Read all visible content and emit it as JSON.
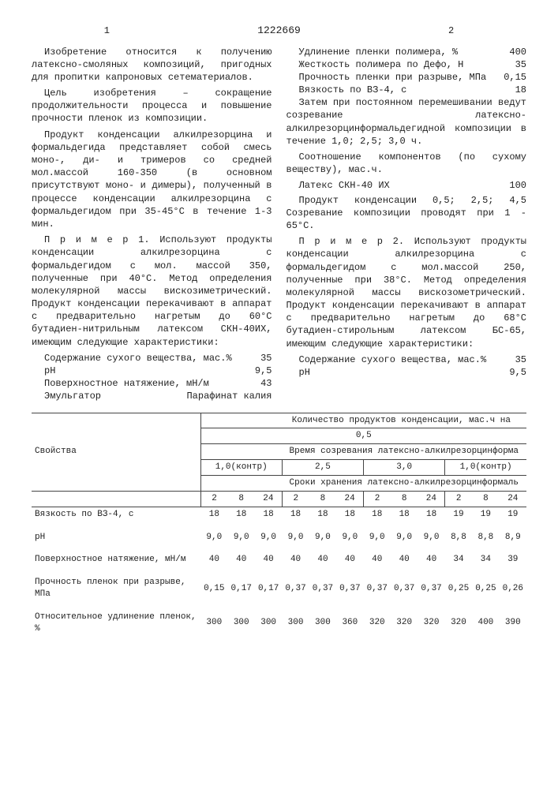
{
  "doc_number": "1222669",
  "left_col_page": "1",
  "right_col_page": "2",
  "left_paragraphs": [
    "Изобретение относится к получению латексно-смоляных композиций, пригодных для пропитки капроновых сетематериалов.",
    "Цель изобретения – сокращение продолжительности процесса и повышение прочности пленок из композиции.",
    "Продукт конденсации алкилрезорцина и формальдегида представляет собой смесь моно-, ди- и тримеров со средней мол.массой 160-350 (в основном присутствуют моно- и димеры), полученный в процессе конденсации алкилрезорцина с формальдегидом при 35-45°С в течение 1-3 мин.",
    "П р и м е р  1. Используют продукты конденсации алкилрезорцина с формальдегидом с мол. массой 350, полученные при 40°С. Метод определения молекулярной массы вискозиметрический. Продукт конденсации перекачивают в аппарат с предварительно нагретым до 60°С бутадиен-нитрильным латексом СКН-40ИХ, имеющим следующие характеристики:"
  ],
  "left_kv": [
    {
      "label": "Содержание сухого вещества, мас.%",
      "value": "35"
    },
    {
      "label": "pH",
      "value": "9,5"
    },
    {
      "label": "Поверхностное натяжение, мН/м",
      "value": "43"
    },
    {
      "label": "Эмульгатор",
      "value": "Парафинат калия"
    }
  ],
  "right_kv_top": [
    {
      "label": "Удлинение пленки полимера, %",
      "value": "400"
    },
    {
      "label": "Жесткость полимера по Дефо, Н",
      "value": "35"
    },
    {
      "label": "Прочность пленки при разрыве, МПа",
      "value": "0,15"
    },
    {
      "label": "Вязкость по ВЗ-4, с",
      "value": "18"
    }
  ],
  "right_paragraphs_1": [
    "Затем при постоянном перемешивании ведут созревание латексно-алкилрезорцинформальдегидной композиции в течение 1,0; 2,5; 3,0 ч.",
    "Соотношение компонентов (по сухому веществу), мас.ч."
  ],
  "right_kv_mid": [
    {
      "label": "Латекс СКН-40 ИХ",
      "value": "100"
    }
  ],
  "right_paragraphs_2": [
    "Продукт конденсации 0,5; 2,5; 4,5 Созревание композиции проводят при 1 - 65°С.",
    "П р и м е р  2. Используют продукты конденсации алкилрезорцина с формальдегидом с мол.массой 250, полученные при 38°С. Метод определения молекулярной массы вискозометрический. Продукт конденсации перекачивают в аппарат с предварительно нагретым до 68°С бутадиен-стирольным латексом БС-65, имеющим следующие характеристики:"
  ],
  "right_kv_bot": [
    {
      "label": "Содержание сухого вещества, мас.%",
      "value": "35"
    },
    {
      "label": "pH",
      "value": "9,5"
    }
  ],
  "table": {
    "header_line1": "Количество продуктов конденсации, мас.ч на",
    "qty_group": "0,5",
    "properties_label": "Свойства",
    "header_line2": "Время созревания латексно-алкилрезорцинформа",
    "times": [
      "1,0(контр)",
      "2,5",
      "3,0",
      "1,0(контр)"
    ],
    "header_line3": "Сроки хранения латексно-алкилрезорцинформаль",
    "storage_headers": [
      "2",
      "8",
      "24",
      "2",
      "8",
      "24",
      "2",
      "8",
      "24",
      "2",
      "8",
      "24"
    ],
    "rows": [
      {
        "label": "Вязкость по ВЗ-4, с",
        "values": [
          "18",
          "18",
          "18",
          "18",
          "18",
          "18",
          "18",
          "18",
          "18",
          "19",
          "19",
          "19"
        ]
      },
      {
        "label": "pH",
        "values": [
          "9,0",
          "9,0",
          "9,0",
          "9,0",
          "9,0",
          "9,0",
          "9,0",
          "9,0",
          "9,0",
          "8,8",
          "8,8",
          "8,9"
        ]
      },
      {
        "label": "Поверхностное натяжение, мН/м",
        "values": [
          "40",
          "40",
          "40",
          "40",
          "40",
          "40",
          "40",
          "40",
          "40",
          "34",
          "34",
          "39"
        ]
      },
      {
        "label": "Прочность пленок при разрыве, МПа",
        "values": [
          "0,15",
          "0,17",
          "0,17",
          "0,37",
          "0,37",
          "0,37",
          "0,37",
          "0,37",
          "0,37",
          "0,25",
          "0,25",
          "0,26"
        ]
      },
      {
        "label": "Относительное удлинение пленок, %",
        "values": [
          "300",
          "300",
          "300",
          "300",
          "300",
          "360",
          "320",
          "320",
          "320",
          "320",
          "400",
          "390"
        ]
      }
    ]
  },
  "line_markers_left": [
    "5",
    "10",
    "15",
    "20",
    "25",
    "30"
  ]
}
